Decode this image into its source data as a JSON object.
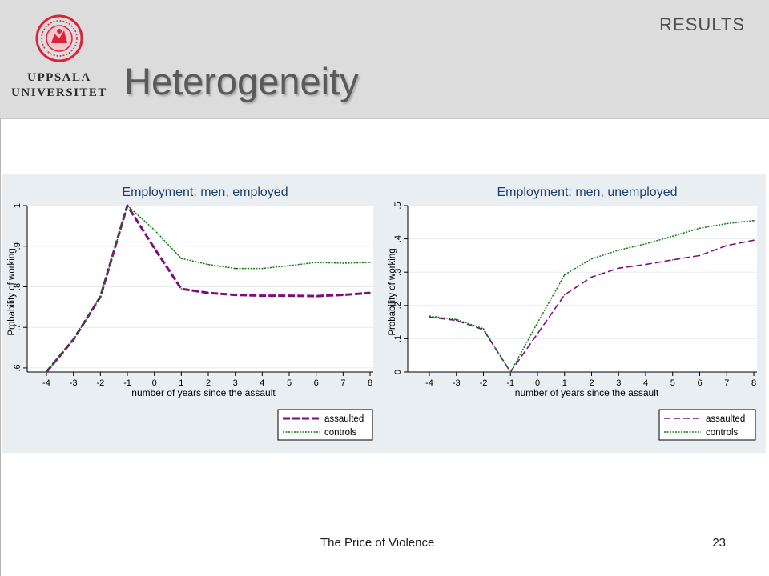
{
  "header": {
    "university_name_line1": "UPPSALA",
    "university_name_line2": "UNIVERSITET",
    "section_label": "RESULTS",
    "title": "Heterogeneity"
  },
  "footer": {
    "presentation_title": "The Price of Violence",
    "page_number": "23"
  },
  "colors": {
    "header_bg": "#dcdcdc",
    "chart_bg": "#e9eef2",
    "assaulted": "#7b0d7e",
    "controls": "#0f7a0f",
    "logo_red": "#d9243b"
  },
  "chart_data": [
    {
      "type": "line",
      "title": "Employment: men, employed",
      "xlabel": "number of years since the assault",
      "ylabel": "Probability of working",
      "x": [
        -4,
        -3,
        -2,
        -1,
        0,
        1,
        2,
        3,
        4,
        5,
        6,
        7,
        8
      ],
      "x_ticks": [
        "-4",
        "-3",
        "-2",
        "-1",
        "0",
        "1",
        "2",
        "3",
        "4",
        "5",
        "6",
        "7",
        "8"
      ],
      "ylim": [
        0.59,
        1.0
      ],
      "y_ticks": [
        0.6,
        0.7,
        0.8,
        0.9,
        1.0
      ],
      "y_tick_labels": [
        ".6",
        ".7",
        ".8",
        ".9",
        "1"
      ],
      "grid": true,
      "legend": "bottom-right",
      "series": [
        {
          "name": "assaulted",
          "style": "dashed-thick",
          "values": [
            0.59,
            0.67,
            0.775,
            1.0,
            0.895,
            0.795,
            0.785,
            0.78,
            0.778,
            0.778,
            0.777,
            0.78,
            0.785
          ]
        },
        {
          "name": "controls",
          "style": "dotted",
          "values": [
            0.59,
            0.67,
            0.775,
            1.0,
            0.94,
            0.87,
            0.855,
            0.845,
            0.845,
            0.852,
            0.86,
            0.858,
            0.86
          ]
        }
      ]
    },
    {
      "type": "line",
      "title": "Employment: men, unemployed",
      "xlabel": "number of years since the assault",
      "ylabel": "Probability of working",
      "x": [
        -4,
        -3,
        -2,
        -1,
        0,
        1,
        2,
        3,
        4,
        5,
        6,
        7,
        8
      ],
      "x_ticks": [
        "-4",
        "-3",
        "-2",
        "-1",
        "0",
        "1",
        "2",
        "3",
        "4",
        "5",
        "6",
        "7",
        "8"
      ],
      "ylim": [
        0,
        0.5
      ],
      "y_ticks": [
        0,
        0.1,
        0.2,
        0.3,
        0.4,
        0.5
      ],
      "y_tick_labels": [
        "0",
        ".1",
        ".2",
        ".3",
        ".4",
        ".5"
      ],
      "grid": true,
      "legend": "bottom-right",
      "series": [
        {
          "name": "assaulted",
          "style": "dashed",
          "values": [
            0.165,
            0.155,
            0.127,
            0.0,
            0.115,
            0.232,
            0.285,
            0.312,
            0.323,
            0.337,
            0.35,
            0.38,
            0.396
          ]
        },
        {
          "name": "controls",
          "style": "dotted",
          "values": [
            0.168,
            0.158,
            0.13,
            0.0,
            0.148,
            0.292,
            0.34,
            0.366,
            0.385,
            0.408,
            0.432,
            0.446,
            0.455
          ]
        }
      ]
    }
  ]
}
